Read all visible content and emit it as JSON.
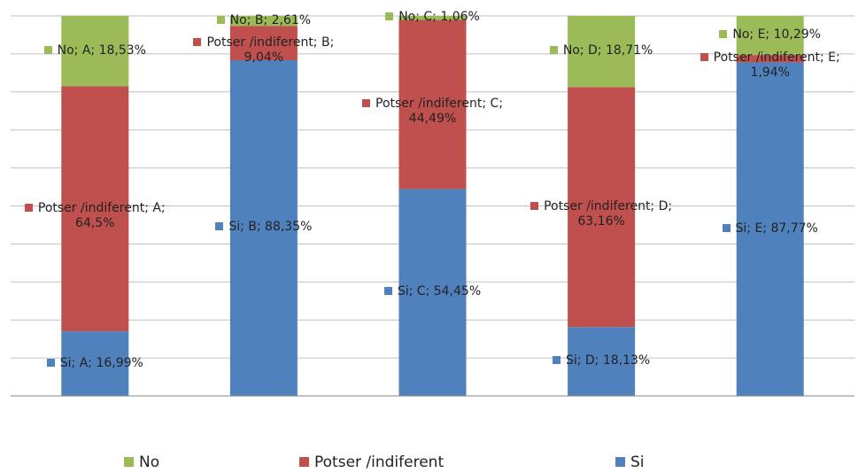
{
  "chart_data": {
    "type": "stacked_bar",
    "series": [
      {
        "name": "Si",
        "color": "#4f81bd",
        "values": [
          16.99,
          88.35,
          54.45,
          18.13,
          87.77
        ],
        "value_labels": [
          "Si; A; 16,99%",
          "Si; B; 88,35%",
          "Si; C; 54,45%",
          "Si; D; 18,13%",
          "Si; E; 87,77%"
        ]
      },
      {
        "name": "Potser /indiferent",
        "color": "#c0504d",
        "values": [
          64.5,
          9.04,
          44.49,
          63.16,
          1.94
        ],
        "value_labels": [
          "Potser /indiferent; A; 64,5%",
          "Potser /indiferent; B; 9,04%",
          "Potser /indiferent; C; 44,49%",
          "Potser /indiferent; D; 63,16%",
          "Potser /indiferent; E; 1,94%"
        ]
      },
      {
        "name": "No",
        "color": "#9bbb59",
        "values": [
          18.53,
          2.61,
          1.06,
          18.71,
          10.29
        ],
        "value_labels": [
          "No; A; 18,53%",
          "No; B; 2,61%",
          "No; C; 1,06%",
          "No; D; 18,71%",
          "No; E; 10,29%"
        ]
      }
    ],
    "ylim": [
      0,
      100
    ],
    "yticks": [
      0,
      10,
      20,
      30,
      40,
      50,
      60,
      70,
      80,
      90,
      100
    ],
    "grid": true,
    "legend": "bottom"
  }
}
